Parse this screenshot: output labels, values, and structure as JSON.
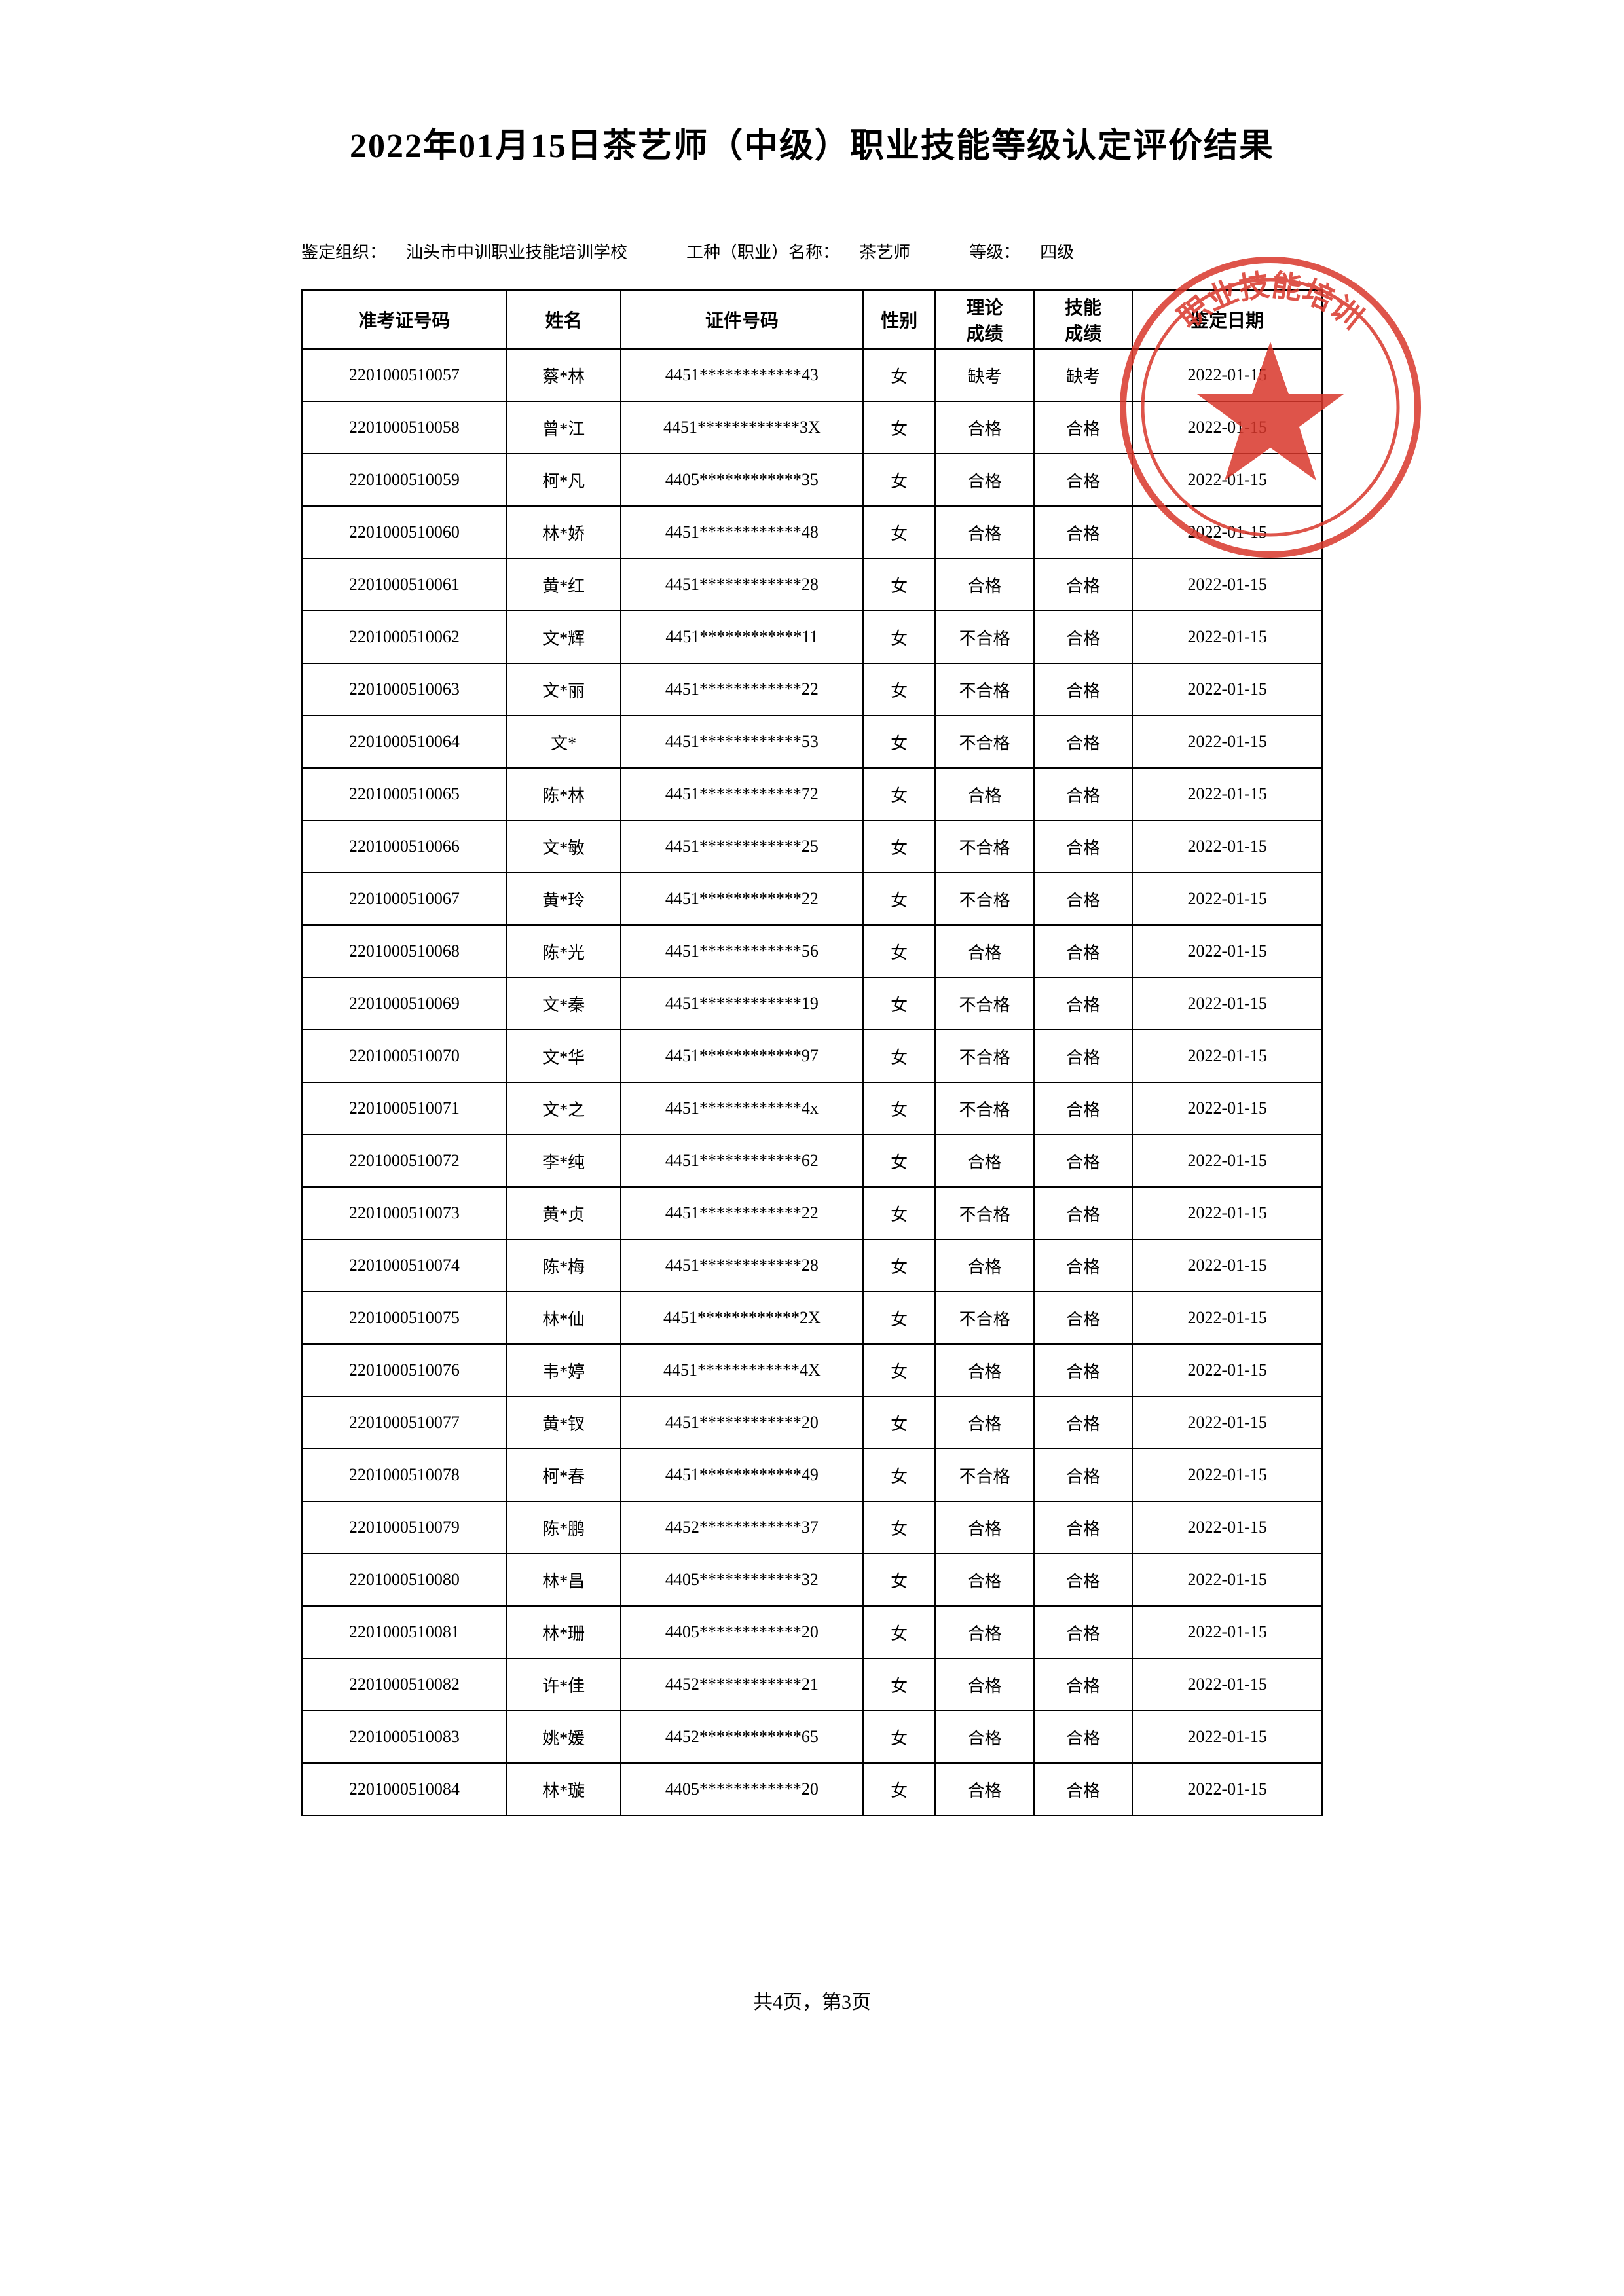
{
  "title": "2022年01月15日茶艺师（中级）职业技能等级认定评价结果",
  "title_fontsize": 52,
  "meta": {
    "org_label": "鉴定组织：",
    "org_value": "汕头市中训职业技能培训学校",
    "job_label": "工种（职业）名称：",
    "job_value": "茶艺师",
    "level_label": "等级：",
    "level_value": "四级",
    "fontsize": 26
  },
  "headers": {
    "id": "准考证号码",
    "name": "姓名",
    "cert": "证件号码",
    "sex": "性别",
    "theory": "理论\n成绩",
    "skill": "技能\n成绩",
    "date": "鉴定日期"
  },
  "header_row_height": 90,
  "data_row_height": 80,
  "cell_fontsize": 26,
  "header_fontsize": 28,
  "rows": [
    {
      "id": "2201000510057",
      "name": "蔡*林",
      "cert": "4451************43",
      "sex": "女",
      "theory": "缺考",
      "skill": "缺考",
      "date": "2022-01-15"
    },
    {
      "id": "2201000510058",
      "name": "曾*江",
      "cert": "4451************3X",
      "sex": "女",
      "theory": "合格",
      "skill": "合格",
      "date": "2022-01-15"
    },
    {
      "id": "2201000510059",
      "name": "柯*凡",
      "cert": "4405************35",
      "sex": "女",
      "theory": "合格",
      "skill": "合格",
      "date": "2022-01-15"
    },
    {
      "id": "2201000510060",
      "name": "林*娇",
      "cert": "4451************48",
      "sex": "女",
      "theory": "合格",
      "skill": "合格",
      "date": "2022-01-15"
    },
    {
      "id": "2201000510061",
      "name": "黄*红",
      "cert": "4451************28",
      "sex": "女",
      "theory": "合格",
      "skill": "合格",
      "date": "2022-01-15"
    },
    {
      "id": "2201000510062",
      "name": "文*辉",
      "cert": "4451************11",
      "sex": "女",
      "theory": "不合格",
      "skill": "合格",
      "date": "2022-01-15"
    },
    {
      "id": "2201000510063",
      "name": "文*丽",
      "cert": "4451************22",
      "sex": "女",
      "theory": "不合格",
      "skill": "合格",
      "date": "2022-01-15"
    },
    {
      "id": "2201000510064",
      "name": "文*",
      "cert": "4451************53",
      "sex": "女",
      "theory": "不合格",
      "skill": "合格",
      "date": "2022-01-15"
    },
    {
      "id": "2201000510065",
      "name": "陈*林",
      "cert": "4451************72",
      "sex": "女",
      "theory": "合格",
      "skill": "合格",
      "date": "2022-01-15"
    },
    {
      "id": "2201000510066",
      "name": "文*敏",
      "cert": "4451************25",
      "sex": "女",
      "theory": "不合格",
      "skill": "合格",
      "date": "2022-01-15"
    },
    {
      "id": "2201000510067",
      "name": "黄*玲",
      "cert": "4451************22",
      "sex": "女",
      "theory": "不合格",
      "skill": "合格",
      "date": "2022-01-15"
    },
    {
      "id": "2201000510068",
      "name": "陈*光",
      "cert": "4451************56",
      "sex": "女",
      "theory": "合格",
      "skill": "合格",
      "date": "2022-01-15"
    },
    {
      "id": "2201000510069",
      "name": "文*秦",
      "cert": "4451************19",
      "sex": "女",
      "theory": "不合格",
      "skill": "合格",
      "date": "2022-01-15"
    },
    {
      "id": "2201000510070",
      "name": "文*华",
      "cert": "4451************97",
      "sex": "女",
      "theory": "不合格",
      "skill": "合格",
      "date": "2022-01-15"
    },
    {
      "id": "2201000510071",
      "name": "文*之",
      "cert": "4451************4x",
      "sex": "女",
      "theory": "不合格",
      "skill": "合格",
      "date": "2022-01-15"
    },
    {
      "id": "2201000510072",
      "name": "李*纯",
      "cert": "4451************62",
      "sex": "女",
      "theory": "合格",
      "skill": "合格",
      "date": "2022-01-15"
    },
    {
      "id": "2201000510073",
      "name": "黄*贞",
      "cert": "4451************22",
      "sex": "女",
      "theory": "不合格",
      "skill": "合格",
      "date": "2022-01-15"
    },
    {
      "id": "2201000510074",
      "name": "陈*梅",
      "cert": "4451************28",
      "sex": "女",
      "theory": "合格",
      "skill": "合格",
      "date": "2022-01-15"
    },
    {
      "id": "2201000510075",
      "name": "林*仙",
      "cert": "4451************2X",
      "sex": "女",
      "theory": "不合格",
      "skill": "合格",
      "date": "2022-01-15"
    },
    {
      "id": "2201000510076",
      "name": "韦*婷",
      "cert": "4451************4X",
      "sex": "女",
      "theory": "合格",
      "skill": "合格",
      "date": "2022-01-15"
    },
    {
      "id": "2201000510077",
      "name": "黄*钗",
      "cert": "4451************20",
      "sex": "女",
      "theory": "合格",
      "skill": "合格",
      "date": "2022-01-15"
    },
    {
      "id": "2201000510078",
      "name": "柯*春",
      "cert": "4451************49",
      "sex": "女",
      "theory": "不合格",
      "skill": "合格",
      "date": "2022-01-15"
    },
    {
      "id": "2201000510079",
      "name": "陈*鹏",
      "cert": "4452************37",
      "sex": "女",
      "theory": "合格",
      "skill": "合格",
      "date": "2022-01-15"
    },
    {
      "id": "2201000510080",
      "name": "林*昌",
      "cert": "4405************32",
      "sex": "女",
      "theory": "合格",
      "skill": "合格",
      "date": "2022-01-15"
    },
    {
      "id": "2201000510081",
      "name": "林*珊",
      "cert": "4405************20",
      "sex": "女",
      "theory": "合格",
      "skill": "合格",
      "date": "2022-01-15"
    },
    {
      "id": "2201000510082",
      "name": "许*佳",
      "cert": "4452************21",
      "sex": "女",
      "theory": "合格",
      "skill": "合格",
      "date": "2022-01-15"
    },
    {
      "id": "2201000510083",
      "name": "姚*媛",
      "cert": "4452************65",
      "sex": "女",
      "theory": "合格",
      "skill": "合格",
      "date": "2022-01-15"
    },
    {
      "id": "2201000510084",
      "name": "林*璇",
      "cert": "4405************20",
      "sex": "女",
      "theory": "合格",
      "skill": "合格",
      "date": "2022-01-15"
    }
  ],
  "footer": "共4页，第3页",
  "footer_fontsize": 30,
  "stamp": {
    "color": "#d9372b",
    "outer_radius": 230,
    "inner_radius": 200,
    "text": "职业技能培训",
    "star_points": 5
  },
  "colors": {
    "text": "#000000",
    "background": "#ffffff",
    "border": "#000000"
  }
}
